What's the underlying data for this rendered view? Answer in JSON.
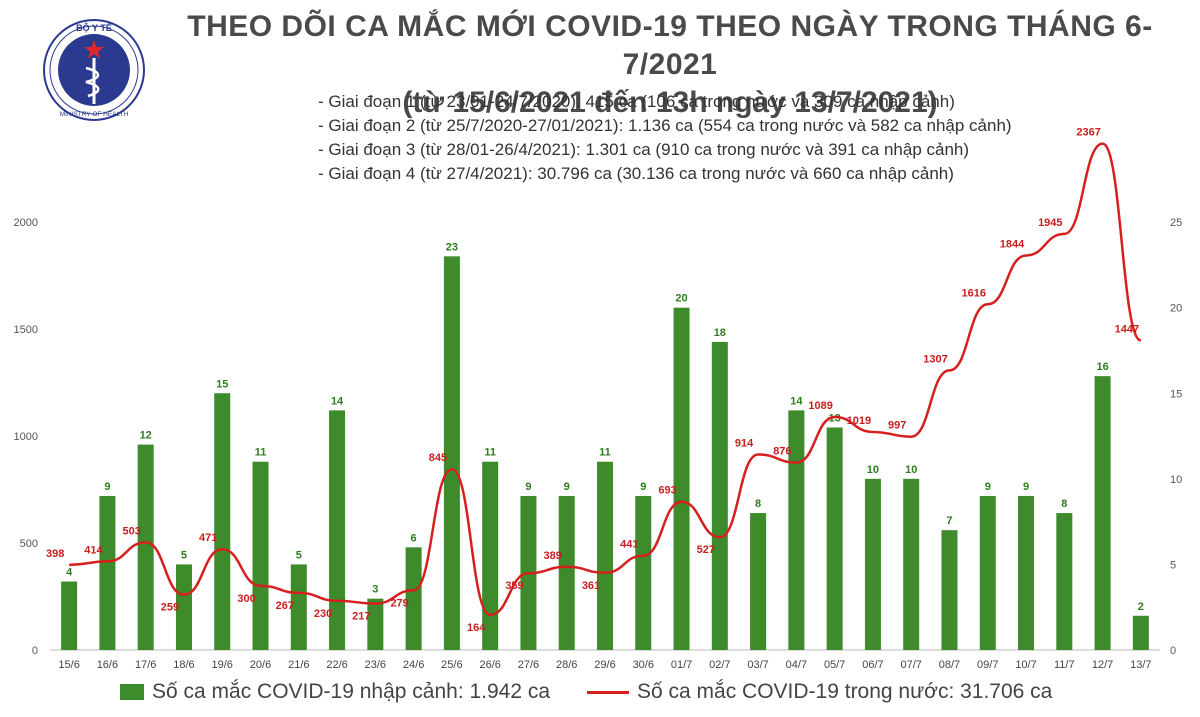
{
  "header": {
    "title": "THEO DÕI CA MẮC MỚI COVID-19 THEO NGÀY TRONG THÁNG 6-7/2021",
    "subtitle": "(từ 15/6/2021 đến 13h ngày 13/7/2021)",
    "logo": {
      "icon": "ministry-of-health-emblem-icon",
      "top_text": "BỘ Y TẾ",
      "bottom_text": "MINISTRY OF HEALTH"
    }
  },
  "phases": [
    "- Giai đoạn 1 (từ 23/01-24/7/2020): 415 ca (106 ca trong nước và 309 ca nhập cảnh)",
    "- Giai đoạn 2 (từ 25/7/2020-27/01/2021): 1.136 ca (554 ca trong nước và 582 ca nhập cảnh)",
    "- Giai đoạn 3 (từ 28/01-26/4/2021): 1.301 ca (910 ca trong nước và 391 ca nhập cảnh)",
    "- Giai đoạn 4 (từ 27/4/2021): 30.796 ca (30.136 ca trong nước và 660 ca nhập cảnh)"
  ],
  "legend": {
    "imported_label": "Số ca mắc COVID-19 nhập cảnh: 1.942 ca",
    "domestic_label": "Số ca mắc COVID-19 trong nước: 31.706 ca"
  },
  "chart_data": {
    "type": "bar+line",
    "categories": [
      "15/6",
      "16/6",
      "17/6",
      "18/6",
      "19/6",
      "20/6",
      "21/6",
      "22/6",
      "23/6",
      "24/6",
      "25/6",
      "26/6",
      "27/6",
      "28/6",
      "29/6",
      "30/6",
      "01/7",
      "02/7",
      "03/7",
      "04/7",
      "05/7",
      "06/7",
      "07/7",
      "08/7",
      "09/7",
      "10/7",
      "11/7",
      "12/7",
      "13/7"
    ],
    "series": [
      {
        "name": "Số ca mắc COVID-19 nhập cảnh: 1.942 ca",
        "type": "bar",
        "axis": "right",
        "color": "#3d8b2a",
        "values": [
          4,
          9,
          12,
          5,
          15,
          11,
          5,
          14,
          3,
          6,
          23,
          11,
          9,
          9,
          11,
          9,
          20,
          18,
          8,
          14,
          13,
          10,
          10,
          7,
          9,
          9,
          8,
          16,
          2
        ]
      },
      {
        "name": "Số ca mắc COVID-19 trong nước: 31.706 ca",
        "type": "line",
        "axis": "left",
        "color": "#d62020",
        "values": [
          398,
          414,
          503,
          259,
          471,
          300,
          267,
          230,
          217,
          279,
          845,
          164,
          359,
          389,
          361,
          441,
          693,
          527,
          914,
          876,
          1089,
          1019,
          997,
          1307,
          1616,
          1844,
          1945,
          2367,
          1447
        ]
      }
    ],
    "y_left": {
      "ticks": [
        0,
        500,
        1000,
        1500,
        2000
      ],
      "ylim": [
        0,
        2150
      ]
    },
    "y_right": {
      "ticks": [
        0,
        5,
        10,
        15,
        20,
        25
      ],
      "ylim": [
        0,
        26.875
      ]
    },
    "grid": false,
    "legend_position": "bottom"
  }
}
